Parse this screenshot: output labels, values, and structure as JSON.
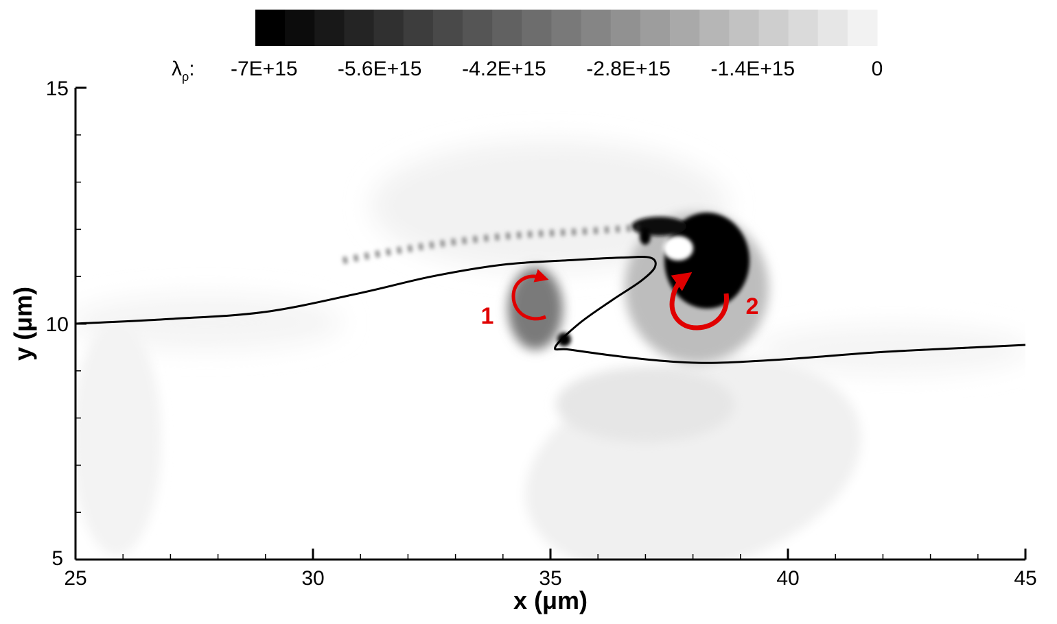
{
  "chart_data": {
    "type": "heatmap",
    "title": "",
    "xlabel": "x (μm)",
    "ylabel": "y (μm)",
    "xlim": [
      25,
      45
    ],
    "ylim": [
      5,
      15
    ],
    "x_ticks": [
      "25",
      "30",
      "35",
      "40",
      "45"
    ],
    "y_ticks": [
      "5",
      "10",
      "15"
    ],
    "x_tick_values": [
      25,
      30,
      35,
      40,
      45
    ],
    "y_tick_values": [
      5,
      10,
      15
    ],
    "colorbar": {
      "symbol": "λ",
      "subscript": "ρ",
      "suffix": ":",
      "range": [
        -7000000000000000.0,
        0
      ],
      "levels": 21,
      "tick_labels": [
        "-7E+15",
        "-5.6E+15",
        "-4.2E+15",
        "-2.8E+15",
        "-1.4E+15",
        "0"
      ],
      "tick_values": [
        -7000000000000000.0,
        -5600000000000000.0,
        -4200000000000000.0,
        -2800000000000000.0,
        -1400000000000000.0,
        0
      ],
      "colormap": "black-to-white"
    },
    "interface_line": {
      "x": [
        25,
        27,
        29,
        31,
        32.5,
        34,
        35.5,
        36.5,
        37.1,
        37.2,
        36.9,
        36.3,
        35.6,
        35.1,
        35.4,
        36.5,
        37.5,
        38.5,
        40,
        42,
        44,
        45
      ],
      "y": [
        10.0,
        10.1,
        10.25,
        10.65,
        11.0,
        11.25,
        11.35,
        11.4,
        11.4,
        11.2,
        10.9,
        10.5,
        10.0,
        9.5,
        9.45,
        9.3,
        9.2,
        9.17,
        9.25,
        9.4,
        9.5,
        9.55
      ]
    },
    "annotations": [
      {
        "label": "1",
        "x": 34.3,
        "y": 10.5
      },
      {
        "label": "2",
        "x": 38.3,
        "y": 10.5
      }
    ],
    "colors": {
      "annotation": "#e00000",
      "line": "#000000"
    }
  }
}
